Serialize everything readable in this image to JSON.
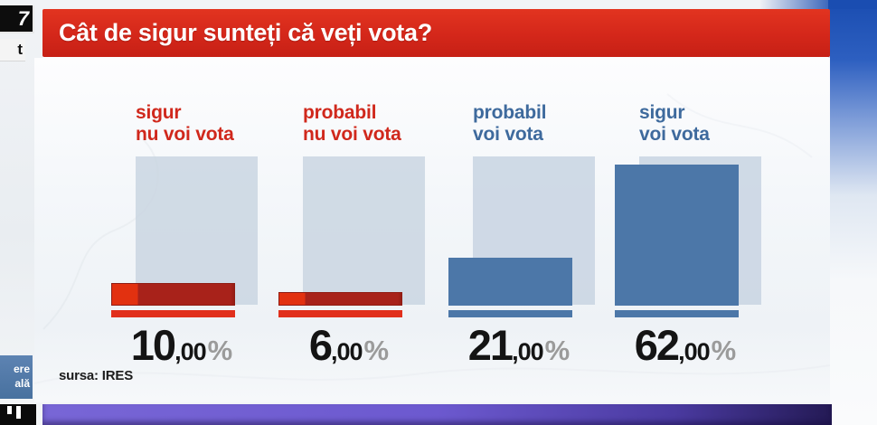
{
  "header": {
    "title": "Cât de sigur sunteți că veți vota?",
    "bg_color": "#d4271a",
    "text_color": "#ffffff"
  },
  "source": {
    "label": "sursa: IRES"
  },
  "chart_data": {
    "type": "bar",
    "title": "Cât de sigur sunteți că veți vota?",
    "categories": [
      "sigur nu voi vota",
      "probabil nu voi vota",
      "probabil voi vota",
      "sigur voi vota"
    ],
    "values": [
      10.0,
      6.0,
      21.0,
      62.0
    ],
    "value_labels": [
      "10,00%",
      "6,00%",
      "21,00%",
      "62,00%"
    ],
    "series_colors": [
      "#a8221a",
      "#a8221a",
      "#4c77a8",
      "#4c77a8"
    ],
    "label_colors": [
      "#d0281c",
      "#d0281c",
      "#3e6a9d",
      "#3e6a9d"
    ],
    "backdrop_color": "#c8d4e0",
    "ylim": [
      0,
      65
    ],
    "grid": false,
    "legend": false,
    "source": "sursa: IRES"
  },
  "bars": [
    {
      "line1": "sigur",
      "line2": "nu voi vota",
      "value_int": "10",
      "value_frac": ",00",
      "pct": "%"
    },
    {
      "line1": "probabil",
      "line2": "nu voi vota",
      "value_int": "6",
      "value_frac": ",00",
      "pct": "%"
    },
    {
      "line1": "probabil",
      "line2": "voi vota",
      "value_int": "21",
      "value_frac": ",00",
      "pct": "%"
    },
    {
      "line1": "sigur",
      "line2": "voi vota",
      "value_int": "62",
      "value_frac": ",00",
      "pct": "%"
    }
  ],
  "edge": {
    "corner_badge": "7",
    "corner_badge_lower": "t",
    "side_box_line1": "ere",
    "side_box_line2": "ală"
  },
  "colors": {
    "title_red": "#d4271a",
    "bar_red": "#a8221a",
    "bar_red_bright": "#e23110",
    "bar_blue": "#4c77a8",
    "underline_red": "#e1301c",
    "percent_sign_gray": "#9b9b9b",
    "ticker_purple": "#6c59cf",
    "sky_blue": "#1a4db1"
  }
}
